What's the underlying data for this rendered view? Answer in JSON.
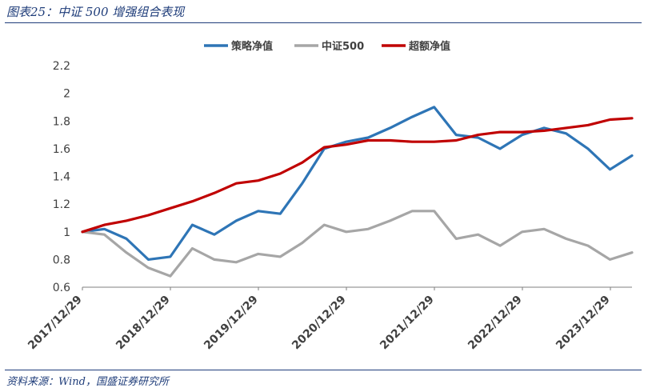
{
  "figure": {
    "title": "图表25：中证 500 增强组合表现",
    "source": "资料来源：Wind，国盛证券研究所"
  },
  "chart_data": {
    "type": "line",
    "ylim": [
      0.6,
      2.2
    ],
    "yticks": [
      "0.6",
      "0.8",
      "1",
      "1.2",
      "1.4",
      "1.6",
      "1.8",
      "2",
      "2.2"
    ],
    "xticks": [
      "2017/12/29",
      "2018/12/29",
      "2019/12/29",
      "2020/12/29",
      "2021/12/29",
      "2022/12/29",
      "2023/12/29"
    ],
    "legend_position": "top-center",
    "grid": false,
    "x": [
      "2017/12/29",
      "2018/03/31",
      "2018/06/30",
      "2018/09/30",
      "2018/12/29",
      "2019/03/31",
      "2019/06/30",
      "2019/09/30",
      "2019/12/29",
      "2020/03/31",
      "2020/06/30",
      "2020/09/30",
      "2020/12/29",
      "2021/03/31",
      "2021/06/30",
      "2021/09/30",
      "2021/12/29",
      "2022/03/31",
      "2022/06/30",
      "2022/09/30",
      "2022/12/29",
      "2023/03/31",
      "2023/06/30",
      "2023/09/30",
      "2023/12/29",
      "2024/03/31"
    ],
    "series": [
      {
        "name": "策略净值",
        "color": "#2e75b6",
        "values": [
          1.0,
          1.02,
          0.95,
          0.8,
          0.82,
          1.05,
          0.98,
          1.08,
          1.15,
          1.13,
          1.35,
          1.6,
          1.65,
          1.68,
          1.75,
          1.83,
          1.9,
          1.7,
          1.68,
          1.6,
          1.7,
          1.75,
          1.71,
          1.6,
          1.45,
          1.55
        ]
      },
      {
        "name": "中证500",
        "color": "#a6a6a6",
        "values": [
          1.0,
          0.98,
          0.85,
          0.74,
          0.68,
          0.88,
          0.8,
          0.78,
          0.84,
          0.82,
          0.92,
          1.05,
          1.0,
          1.02,
          1.08,
          1.15,
          1.15,
          0.95,
          0.98,
          0.9,
          1.0,
          1.02,
          0.95,
          0.9,
          0.8,
          0.85
        ]
      },
      {
        "name": "超额净值",
        "color": "#c00000",
        "values": [
          1.0,
          1.05,
          1.08,
          1.12,
          1.17,
          1.22,
          1.28,
          1.35,
          1.37,
          1.42,
          1.5,
          1.61,
          1.63,
          1.66,
          1.66,
          1.65,
          1.65,
          1.66,
          1.7,
          1.72,
          1.72,
          1.73,
          1.75,
          1.77,
          1.81,
          1.82
        ]
      }
    ]
  }
}
